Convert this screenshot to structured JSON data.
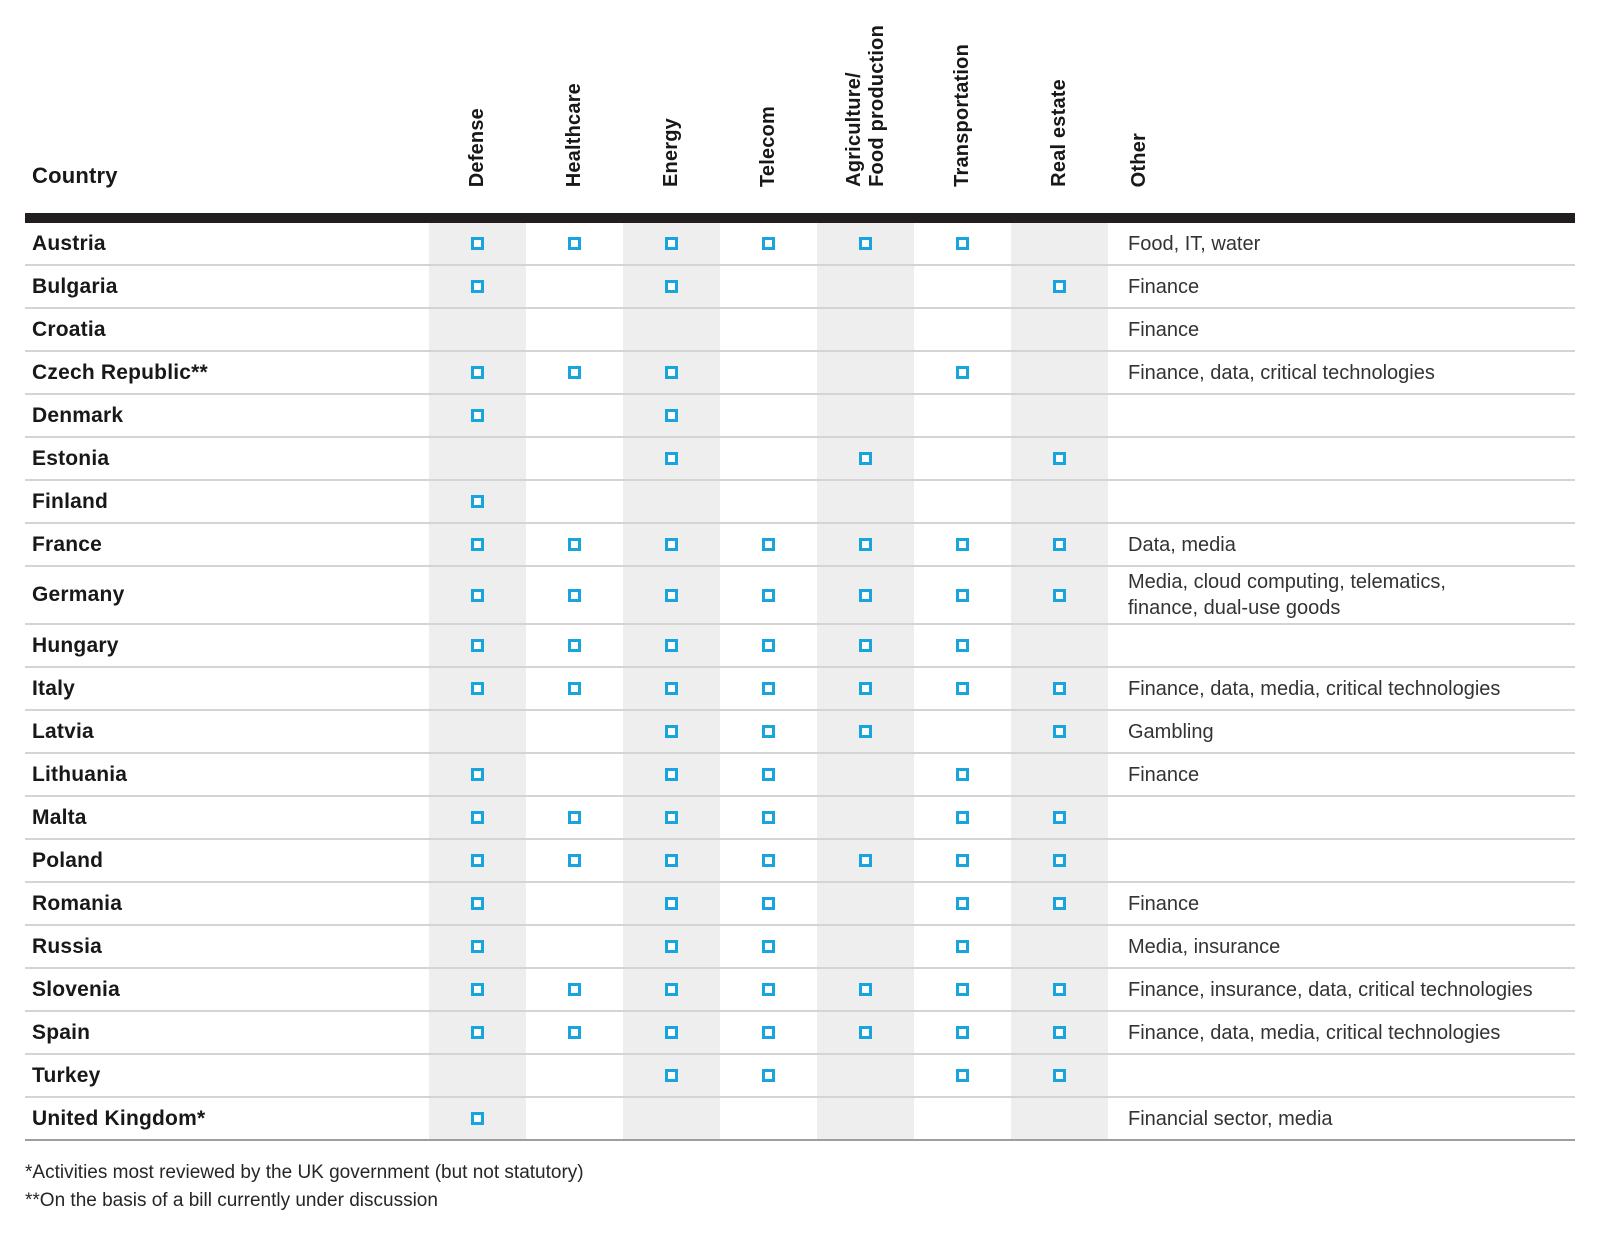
{
  "table": {
    "country_header": "Country",
    "other_header": "Other",
    "columns": [
      {
        "id": "defense",
        "label": "Defense",
        "shaded": true
      },
      {
        "id": "healthcare",
        "label": "Healthcare",
        "shaded": false
      },
      {
        "id": "energy",
        "label": "Energy",
        "shaded": true
      },
      {
        "id": "telecom",
        "label": "Telecom",
        "shaded": false
      },
      {
        "id": "agriculture-food-production",
        "label": "Agriculture/\nFood production",
        "shaded": true
      },
      {
        "id": "transportation",
        "label": "Transportation",
        "shaded": false
      },
      {
        "id": "real-estate",
        "label": "Real estate",
        "shaded": true
      }
    ],
    "rows": [
      {
        "country": "Austria",
        "checks": [
          1,
          1,
          1,
          1,
          1,
          1,
          0
        ],
        "other": "Food, IT, water"
      },
      {
        "country": "Bulgaria",
        "checks": [
          1,
          0,
          1,
          0,
          0,
          0,
          1
        ],
        "other": "Finance"
      },
      {
        "country": "Croatia",
        "checks": [
          0,
          0,
          0,
          0,
          0,
          0,
          0
        ],
        "other": "Finance"
      },
      {
        "country": "Czech Republic**",
        "checks": [
          1,
          1,
          1,
          0,
          0,
          1,
          0
        ],
        "other": "Finance, data, critical technologies"
      },
      {
        "country": "Denmark",
        "checks": [
          1,
          0,
          1,
          0,
          0,
          0,
          0
        ],
        "other": ""
      },
      {
        "country": "Estonia",
        "checks": [
          0,
          0,
          1,
          0,
          1,
          0,
          1
        ],
        "other": ""
      },
      {
        "country": "Finland",
        "checks": [
          1,
          0,
          0,
          0,
          0,
          0,
          0
        ],
        "other": ""
      },
      {
        "country": "France",
        "checks": [
          1,
          1,
          1,
          1,
          1,
          1,
          1
        ],
        "other": "Data, media"
      },
      {
        "country": "Germany",
        "checks": [
          1,
          1,
          1,
          1,
          1,
          1,
          1
        ],
        "other": "Media, cloud computing, telematics,\nfinance, dual-use goods"
      },
      {
        "country": "Hungary",
        "checks": [
          1,
          1,
          1,
          1,
          1,
          1,
          0
        ],
        "other": ""
      },
      {
        "country": "Italy",
        "checks": [
          1,
          1,
          1,
          1,
          1,
          1,
          1
        ],
        "other": "Finance, data, media, critical technologies"
      },
      {
        "country": "Latvia",
        "checks": [
          0,
          0,
          1,
          1,
          1,
          0,
          1
        ],
        "other": "Gambling"
      },
      {
        "country": "Lithuania",
        "checks": [
          1,
          0,
          1,
          1,
          0,
          1,
          0
        ],
        "other": "Finance"
      },
      {
        "country": "Malta",
        "checks": [
          1,
          1,
          1,
          1,
          0,
          1,
          1
        ],
        "other": ""
      },
      {
        "country": "Poland",
        "checks": [
          1,
          1,
          1,
          1,
          1,
          1,
          1
        ],
        "other": ""
      },
      {
        "country": "Romania",
        "checks": [
          1,
          0,
          1,
          1,
          0,
          1,
          1
        ],
        "other": "Finance"
      },
      {
        "country": "Russia",
        "checks": [
          1,
          0,
          1,
          1,
          0,
          1,
          0
        ],
        "other": "Media, insurance"
      },
      {
        "country": "Slovenia",
        "checks": [
          1,
          1,
          1,
          1,
          1,
          1,
          1
        ],
        "other": "Finance, insurance, data, critical technologies"
      },
      {
        "country": "Spain",
        "checks": [
          1,
          1,
          1,
          1,
          1,
          1,
          1
        ],
        "other": "Finance, data, media, critical technologies"
      },
      {
        "country": "Turkey",
        "checks": [
          0,
          0,
          1,
          1,
          0,
          1,
          1
        ],
        "other": ""
      },
      {
        "country": "United Kingdom*",
        "checks": [
          1,
          0,
          0,
          0,
          0,
          0,
          0
        ],
        "other": "Financial sector, media"
      }
    ]
  },
  "footnotes": [
    "*Activities most reviewed by the UK government (but not statutory)",
    "**On the basis of a bill currently under discussion"
  ],
  "colors": {
    "checkbox": "#18a5de",
    "column_stripe": "#eeeeee",
    "header_bar": "#221e1f",
    "row_divider": "#d4d4d4",
    "bottom_rule": "#9e9e9e"
  }
}
